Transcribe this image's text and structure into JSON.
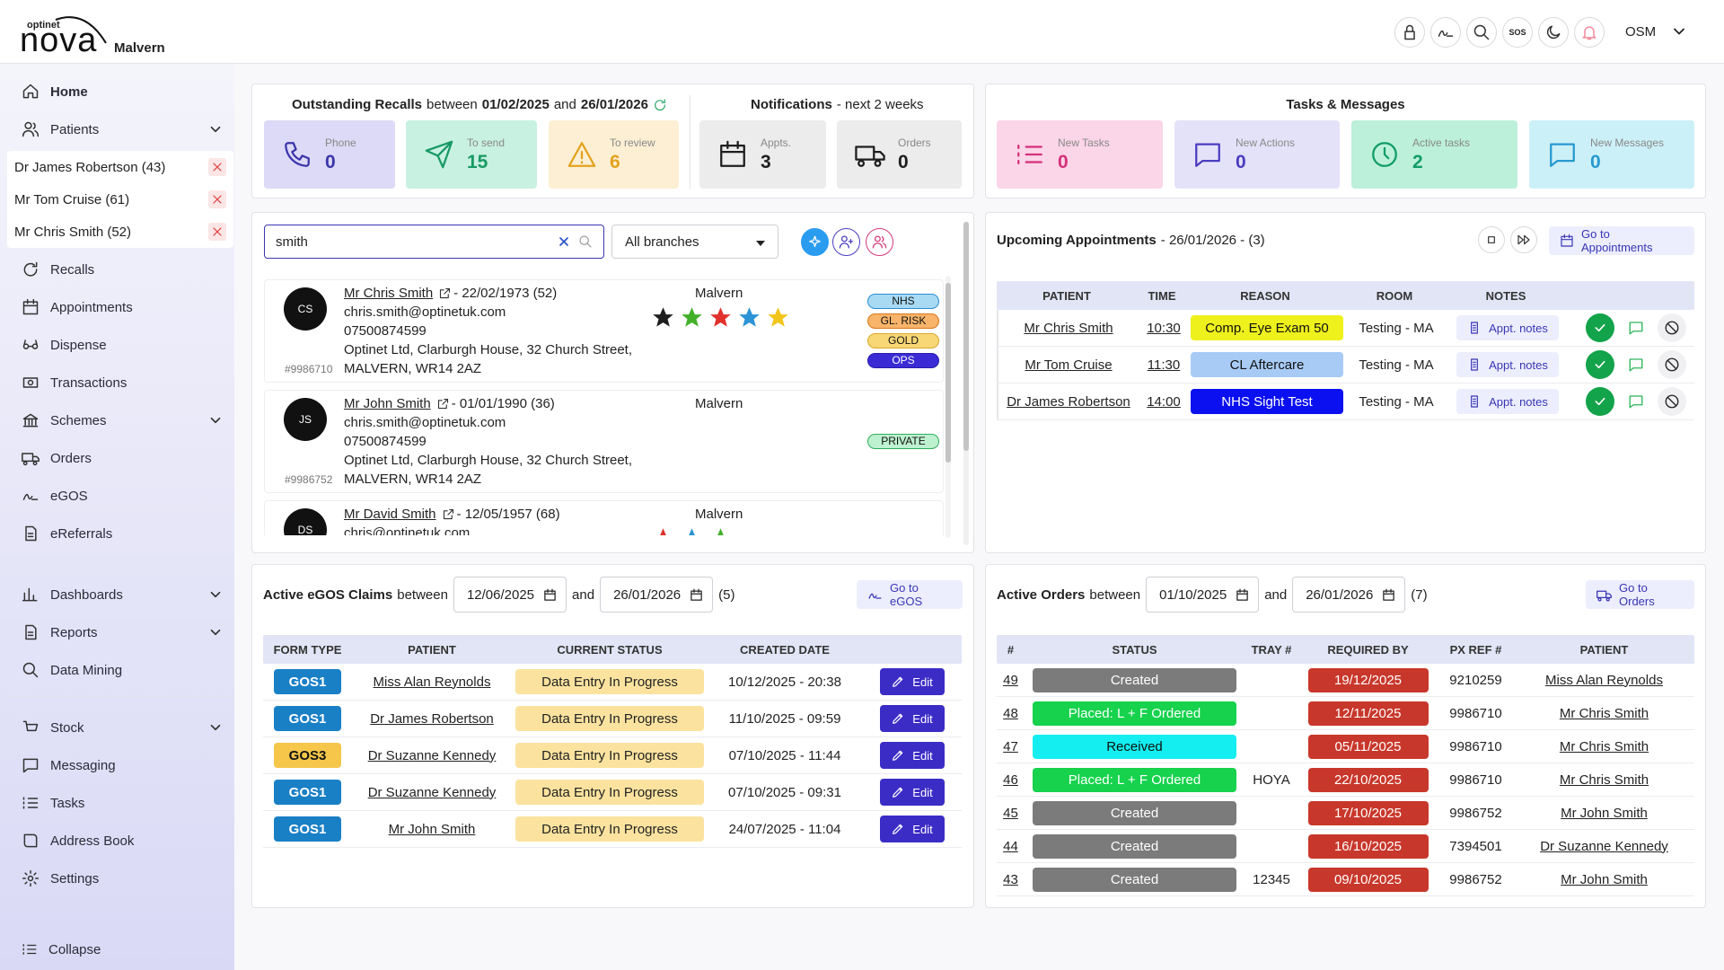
{
  "header": {
    "brand_small": "optinet",
    "brand": "nova",
    "branch": "Malvern",
    "sos": "SOS",
    "user": "OSM"
  },
  "sidebar": {
    "sections": [
      [
        {
          "label": "Home",
          "active": true
        },
        {
          "label": "Patients",
          "expand": true
        }
      ],
      [
        {
          "label": "Recalls"
        },
        {
          "label": "Appointments"
        },
        {
          "label": "Dispense"
        },
        {
          "label": "Transactions"
        },
        {
          "label": "Schemes",
          "expand": true
        },
        {
          "label": "Orders"
        },
        {
          "label": "eGOS"
        },
        {
          "label": "eReferrals"
        }
      ],
      [
        {
          "label": "Dashboards",
          "expand": true
        },
        {
          "label": "Reports",
          "expand": true
        },
        {
          "label": "Data Mining"
        }
      ],
      [
        {
          "label": "Stock",
          "expand": true
        },
        {
          "label": "Messaging"
        },
        {
          "label": "Tasks"
        },
        {
          "label": "Address Book"
        },
        {
          "label": "Settings"
        }
      ]
    ],
    "open_patients": [
      "Dr James Robertson (43)",
      "Mr Tom Cruise (61)",
      "Mr Chris Smith (52)"
    ],
    "collapse": "Collapse"
  },
  "recalls": {
    "title": "Outstanding Recalls",
    "between": "between",
    "from": "01/02/2025",
    "and": "and",
    "to": "26/01/2026",
    "cards": [
      {
        "label": "Phone",
        "value": 0,
        "bg": "#dcdaf6",
        "color": "#3b35a8"
      },
      {
        "label": "To send",
        "value": 15,
        "bg": "#c8f1e1",
        "color": "#189a64"
      },
      {
        "label": "To review",
        "value": 6,
        "bg": "#fcefd3",
        "color": "#e2a21c"
      }
    ]
  },
  "notifications": {
    "title": "Notifications",
    "subtitle": "- next 2 weeks",
    "cards": [
      {
        "label": "Appts.",
        "value": 3,
        "bg": "#ececec",
        "color": "#1e1e1e"
      },
      {
        "label": "Orders",
        "value": 0,
        "bg": "#ececec",
        "color": "#1e1e1e"
      }
    ]
  },
  "tasks": {
    "title": "Tasks & Messages",
    "cards": [
      {
        "label": "New Tasks",
        "value": 0,
        "bg": "#fbd5e8",
        "color": "#d4307a"
      },
      {
        "label": "New Actions",
        "value": 0,
        "bg": "#e4e2f8",
        "color": "#4a3dc0"
      },
      {
        "label": "Active tasks",
        "value": 2,
        "bg": "#bcf0da",
        "color": "#129c66"
      },
      {
        "label": "New Messages",
        "value": 0,
        "bg": "#ccf0f8",
        "color": "#2799cf"
      }
    ]
  },
  "search": {
    "query": "smith",
    "branch": "All branches",
    "results": [
      {
        "initials": "CS",
        "name": "Mr Chris Smith",
        "dob": "- 22/02/1973 (52)",
        "lines": [
          "chris.smith@optinetuk.com",
          "07500874599",
          "Optinet Ltd, Clarburgh House, 32 Church Street,",
          "MALVERN, WR14 2AZ"
        ],
        "id": "#9986710",
        "branch": "Malvern",
        "stars": [
          "#1f1f1f",
          "#43b02a",
          "#e0312c",
          "#2b93d6",
          "#f2c51b"
        ],
        "tags": [
          {
            "label": "NHS",
            "bg": "#a9daf4",
            "border": "#2b8fd0"
          },
          {
            "label": "GL. RISK",
            "bg": "#f7b46a",
            "border": "#d9771c"
          },
          {
            "label": "GOLD",
            "bg": "#f8d776",
            "border": "#d8a82a"
          },
          {
            "label": "OPS",
            "bg": "#3a2bd4",
            "border": "#2a1fae"
          }
        ]
      },
      {
        "initials": "JS",
        "name": "Mr John Smith",
        "dob": "- 01/01/1990 (36)",
        "lines": [
          "chris.smith@optinetuk.com",
          "07500874599",
          "Optinet Ltd, Clarburgh House, 32 Church Street,",
          "MALVERN, WR14 2AZ"
        ],
        "id": "#9986752",
        "branch": "Malvern",
        "stars": [],
        "tags": [
          {
            "label": "PRIVATE",
            "bg": "#bdf1cf",
            "border": "#2fae5c"
          }
        ]
      },
      {
        "initials": "DS",
        "name": "Mr David Smith",
        "dob": "- 12/05/1957 (68)",
        "lines": [
          "chris@optinetuk.com"
        ],
        "branch": "Malvern",
        "stars": [
          "#e0312c",
          "#2b93d6",
          "#43b02a"
        ],
        "tags": []
      }
    ]
  },
  "appointments": {
    "title": "Upcoming Appointments",
    "subtitle": "- 26/01/2026 - (3)",
    "go": "Go to Appointments",
    "columns": [
      "PATIENT",
      "TIME",
      "REASON",
      "ROOM",
      "NOTES"
    ],
    "rows": [
      {
        "patient": "Mr Chris Smith",
        "time": "10:30",
        "reason": "Comp. Eye Exam 50",
        "color": "#eef11c",
        "room": "Testing - MA",
        "notes": "Appt. notes"
      },
      {
        "patient": "Mr Tom Cruise",
        "time": "11:30",
        "reason": "CL Aftercare",
        "color": "#a8cbf6",
        "room": "Testing - MA",
        "notes": "Appt. notes"
      },
      {
        "patient": "Dr James Robertson",
        "time": "14:00",
        "reason": "NHS Sight Test",
        "color": "#0b10f0",
        "room": "Testing - MA",
        "notes": "Appt. notes"
      }
    ]
  },
  "egos": {
    "title": "Active eGOS Claims",
    "between": "between",
    "from": "12/06/2025",
    "and": "and",
    "to": "26/01/2026",
    "count": "(5)",
    "go": "Go to eGOS",
    "columns": [
      "FORM TYPE",
      "PATIENT",
      "CURRENT STATUS",
      "CREATED DATE"
    ],
    "rows": [
      {
        "form": "GOS1",
        "color": "#1a80c6",
        "patient": "Miss Alan Reynolds",
        "status": "Data Entry In Progress",
        "created": "10/12/2025 - 20:38",
        "action": "Edit"
      },
      {
        "form": "GOS1",
        "color": "#1a80c6",
        "patient": "Dr James Robertson",
        "status": "Data Entry In Progress",
        "created": "11/10/2025 - 09:59",
        "action": "Edit"
      },
      {
        "form": "GOS3",
        "color": "#f5c64a",
        "patient": "Dr Suzanne Kennedy",
        "status": "Data Entry In Progress",
        "created": "07/10/2025 - 11:44",
        "action": "Edit"
      },
      {
        "form": "GOS1",
        "color": "#1a80c6",
        "patient": "Dr Suzanne Kennedy",
        "status": "Data Entry In Progress",
        "created": "07/10/2025 - 09:31",
        "action": "Edit"
      },
      {
        "form": "GOS1",
        "color": "#1a80c6",
        "patient": "Mr John Smith",
        "status": "Data Entry In Progress",
        "created": "24/07/2025 - 11:04",
        "action": "Edit"
      }
    ]
  },
  "orders": {
    "title": "Active Orders",
    "between": "between",
    "from": "01/10/2025",
    "and": "and",
    "to": "26/01/2026",
    "count": "(7)",
    "go": "Go to Orders",
    "columns": [
      "#",
      "STATUS",
      "TRAY #",
      "REQUIRED BY",
      "PX REF #",
      "PATIENT"
    ],
    "rows": [
      {
        "id": 49,
        "status": "Created",
        "color": "#7b7b7b",
        "tray": null,
        "required": "19/12/2025",
        "pxref": 9210259,
        "patient": "Miss Alan Reynolds"
      },
      {
        "id": 48,
        "status": "Placed: L + F Ordered",
        "color": "#16d24c",
        "tray": null,
        "required": "12/11/2025",
        "pxref": 9986710,
        "patient": "Mr Chris Smith"
      },
      {
        "id": 47,
        "status": "Received",
        "color": "#14eef0",
        "tray": null,
        "required": "05/11/2025",
        "pxref": 9986710,
        "patient": "Mr Chris Smith"
      },
      {
        "id": 46,
        "status": "Placed: L + F Ordered",
        "color": "#16d24c",
        "tray": "HOYA",
        "required": "22/10/2025",
        "pxref": 9986710,
        "patient": "Mr Chris Smith"
      },
      {
        "id": 45,
        "status": "Created",
        "color": "#7b7b7b",
        "tray": null,
        "required": "17/10/2025",
        "pxref": 9986752,
        "patient": "Mr John Smith"
      },
      {
        "id": 44,
        "status": "Created",
        "color": "#7b7b7b",
        "tray": null,
        "required": "16/10/2025",
        "pxref": 7394501,
        "patient": "Dr Suzanne Kennedy"
      },
      {
        "id": 43,
        "status": "Created",
        "color": "#7b7b7b",
        "tray": 12345,
        "required": "09/10/2025",
        "pxref": 9986752,
        "patient": "Mr John Smith"
      }
    ]
  }
}
